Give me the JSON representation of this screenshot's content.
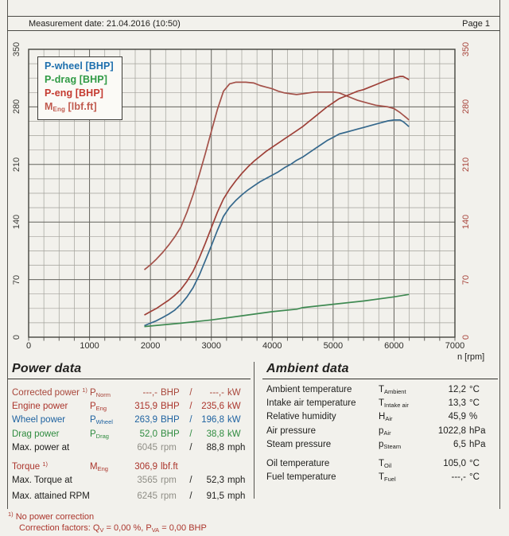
{
  "header": {
    "measurement_date": "Measurement date: 21.04.2016 (10:50)",
    "page_label": "Page 1"
  },
  "colors": {
    "p_wheel": "#35688c",
    "p_drag": "#3f8a52",
    "p_eng": "#9e4038",
    "m_eng": "#a4524a",
    "right_axis": "#a8453c",
    "legend_wheel": "#1d6fad",
    "legend_drag": "#2f9a44",
    "legend_eng": "#c43a30",
    "legend_meng": "#c05a4e"
  },
  "chart_data": {
    "type": "line",
    "x_axis": {
      "label": "n [rpm]",
      "min": 0,
      "max": 7000,
      "major_step": 1000,
      "minor_step": 250,
      "ticks": [
        0,
        1000,
        2000,
        3000,
        4000,
        5000,
        6000,
        7000
      ]
    },
    "y_axis_left": {
      "min": 0,
      "max": 350,
      "major_step": 70,
      "minor_step": 17.5,
      "ticks": [
        0,
        70,
        140,
        210,
        280,
        350
      ]
    },
    "y_axis_right": {
      "min": 0,
      "max": 350,
      "major_step": 70,
      "minor_step": 17.5,
      "ticks": [
        0,
        70,
        140,
        210,
        280,
        350
      ]
    },
    "grid": true,
    "legend_position": "top-left",
    "legend": [
      {
        "label": "P-wheel [BHP]",
        "color": "#1d6fad"
      },
      {
        "label": "P-drag [BHP]",
        "color": "#2f9a44"
      },
      {
        "label": "P-eng [BHP]",
        "color": "#c43a30"
      },
      {
        "base": "M",
        "sub": "Eng",
        "suffix": " [lbf.ft]",
        "color": "#c05a4e"
      }
    ],
    "series": [
      {
        "name": "M-eng torque [lbf.ft]",
        "color": "#a4524a",
        "points": [
          [
            1900,
            82
          ],
          [
            2000,
            88
          ],
          [
            2100,
            95
          ],
          [
            2200,
            103
          ],
          [
            2300,
            112
          ],
          [
            2400,
            122
          ],
          [
            2500,
            134
          ],
          [
            2600,
            152
          ],
          [
            2700,
            173
          ],
          [
            2800,
            197
          ],
          [
            2900,
            223
          ],
          [
            3000,
            250
          ],
          [
            3100,
            277
          ],
          [
            3200,
            299
          ],
          [
            3300,
            308
          ],
          [
            3400,
            310
          ],
          [
            3500,
            310
          ],
          [
            3565,
            310
          ],
          [
            3700,
            309
          ],
          [
            3800,
            306
          ],
          [
            3900,
            304
          ],
          [
            4000,
            302
          ],
          [
            4100,
            299
          ],
          [
            4200,
            297
          ],
          [
            4300,
            296
          ],
          [
            4400,
            295
          ],
          [
            4500,
            296
          ],
          [
            4600,
            297
          ],
          [
            4700,
            298
          ],
          [
            4800,
            298
          ],
          [
            4900,
            298
          ],
          [
            5000,
            298
          ],
          [
            5100,
            297
          ],
          [
            5200,
            294
          ],
          [
            5300,
            291
          ],
          [
            5400,
            288
          ],
          [
            5500,
            286
          ],
          [
            5600,
            284
          ],
          [
            5700,
            282
          ],
          [
            5800,
            281
          ],
          [
            5900,
            280
          ],
          [
            6000,
            278
          ],
          [
            6100,
            273
          ],
          [
            6200,
            267
          ],
          [
            6245,
            264
          ]
        ]
      },
      {
        "name": "P-eng [BHP]",
        "color": "#9e4038",
        "points": [
          [
            1900,
            27
          ],
          [
            2000,
            31
          ],
          [
            2100,
            35
          ],
          [
            2200,
            40
          ],
          [
            2300,
            45
          ],
          [
            2400,
            51
          ],
          [
            2500,
            58
          ],
          [
            2600,
            68
          ],
          [
            2700,
            80
          ],
          [
            2800,
            96
          ],
          [
            2900,
            114
          ],
          [
            3000,
            133
          ],
          [
            3100,
            152
          ],
          [
            3200,
            168
          ],
          [
            3300,
            180
          ],
          [
            3400,
            190
          ],
          [
            3500,
            199
          ],
          [
            3600,
            207
          ],
          [
            3700,
            214
          ],
          [
            3800,
            220
          ],
          [
            3900,
            226
          ],
          [
            4000,
            231
          ],
          [
            4100,
            236
          ],
          [
            4200,
            241
          ],
          [
            4300,
            246
          ],
          [
            4400,
            251
          ],
          [
            4500,
            256
          ],
          [
            4600,
            262
          ],
          [
            4700,
            268
          ],
          [
            4800,
            274
          ],
          [
            4900,
            280
          ],
          [
            5000,
            285
          ],
          [
            5100,
            290
          ],
          [
            5200,
            293
          ],
          [
            5300,
            296
          ],
          [
            5400,
            299
          ],
          [
            5500,
            301
          ],
          [
            5600,
            304
          ],
          [
            5700,
            307
          ],
          [
            5800,
            310
          ],
          [
            5900,
            313
          ],
          [
            6000,
            315
          ],
          [
            6045,
            316
          ],
          [
            6100,
            317
          ],
          [
            6150,
            317
          ],
          [
            6200,
            315
          ],
          [
            6245,
            313
          ]
        ]
      },
      {
        "name": "P-wheel [BHP]",
        "color": "#35688c",
        "points": [
          [
            1900,
            14
          ],
          [
            2000,
            17
          ],
          [
            2100,
            20
          ],
          [
            2200,
            24
          ],
          [
            2300,
            28
          ],
          [
            2400,
            33
          ],
          [
            2500,
            40
          ],
          [
            2600,
            49
          ],
          [
            2700,
            60
          ],
          [
            2800,
            75
          ],
          [
            2900,
            93
          ],
          [
            3000,
            111
          ],
          [
            3100,
            130
          ],
          [
            3200,
            147
          ],
          [
            3300,
            158
          ],
          [
            3400,
            166
          ],
          [
            3500,
            173
          ],
          [
            3600,
            179
          ],
          [
            3700,
            184
          ],
          [
            3800,
            189
          ],
          [
            3900,
            193
          ],
          [
            4000,
            197
          ],
          [
            4100,
            201
          ],
          [
            4200,
            206
          ],
          [
            4300,
            210
          ],
          [
            4400,
            215
          ],
          [
            4500,
            219
          ],
          [
            4600,
            224
          ],
          [
            4700,
            229
          ],
          [
            4800,
            234
          ],
          [
            4900,
            239
          ],
          [
            5000,
            243
          ],
          [
            5100,
            247
          ],
          [
            5200,
            249
          ],
          [
            5300,
            251
          ],
          [
            5400,
            253
          ],
          [
            5500,
            255
          ],
          [
            5600,
            257
          ],
          [
            5700,
            259
          ],
          [
            5800,
            261
          ],
          [
            5900,
            263
          ],
          [
            6000,
            264
          ],
          [
            6045,
            264
          ],
          [
            6100,
            264
          ],
          [
            6150,
            262
          ],
          [
            6200,
            259
          ],
          [
            6245,
            256
          ]
        ]
      },
      {
        "name": "P-drag [BHP]",
        "color": "#3f8a52",
        "points": [
          [
            1900,
            13
          ],
          [
            2500,
            17
          ],
          [
            3000,
            21
          ],
          [
            3500,
            26
          ],
          [
            4000,
            31
          ],
          [
            4400,
            34
          ],
          [
            4500,
            36
          ],
          [
            5000,
            40
          ],
          [
            5500,
            44
          ],
          [
            6000,
            49
          ],
          [
            6245,
            52
          ]
        ]
      }
    ]
  },
  "power": {
    "title": "Power data",
    "rows": [
      {
        "label": "Corrected power",
        "sup": "1)",
        "sym": "P",
        "sym_sub": "Norm",
        "v1": "---,-",
        "u1": "BHP",
        "slash": "/",
        "v2": "---,-",
        "u2": "kW"
      },
      {
        "label": "Engine power",
        "sym": "P",
        "sym_sub": "Eng",
        "v1": "315,9",
        "u1": "BHP",
        "slash": "/",
        "v2": "235,6",
        "u2": "kW"
      },
      {
        "label": "Wheel power",
        "sym": "P",
        "sym_sub": "Wheel",
        "v1": "263,9",
        "u1": "BHP",
        "slash": "/",
        "v2": "196,8",
        "u2": "kW"
      },
      {
        "label": "Drag power",
        "sym": "P",
        "sym_sub": "Drag",
        "v1": "52,0",
        "u1": "BHP",
        "slash": "/",
        "v2": "38,8",
        "u2": "kW"
      },
      {
        "label": "Max. power at",
        "v1": "6045",
        "u1": "rpm",
        "slash": "/",
        "v2": "88,8",
        "u2": "mph"
      },
      {
        "label": "Torque",
        "sup": "1)",
        "sym": "M",
        "sym_sub": "Eng",
        "v1": "306,9",
        "u1": "lbf.ft"
      },
      {
        "label": "Max. Torque at",
        "v1": "3565",
        "u1": "rpm",
        "slash": "/",
        "v2": "52,3",
        "u2": "mph"
      },
      {
        "label": "Max. attained RPM",
        "v1": "6245",
        "u1": "rpm",
        "slash": "/",
        "v2": "91,5",
        "u2": "mph"
      }
    ],
    "footnote1": {
      "sup": "1)",
      "text": " No power correction"
    },
    "footnote2": {
      "p1": "Correction factors: Q",
      "s1": "V",
      "p2": " =  0,00 %, P",
      "s2": "VA",
      "p3": " =  0,00 BHP"
    }
  },
  "ambient": {
    "title": "Ambient data",
    "rows": [
      {
        "label": "Ambient temperature",
        "sym": "T",
        "sym_sub": "Ambient",
        "val": "12,2",
        "unit": "°C"
      },
      {
        "label": "Intake air temperature",
        "sym": "T",
        "sym_sub": "Intake air",
        "val": "13,3",
        "unit": "°C"
      },
      {
        "label": "Relative humidity",
        "sym": "H",
        "sym_sub": "Air",
        "val": "45,9",
        "unit": "%"
      },
      {
        "label": "Air pressure",
        "sym": "p",
        "sym_sub": "Air",
        "val": "1022,8",
        "unit": "hPa"
      },
      {
        "label": "Steam pressure",
        "sym": "p",
        "sym_sub": "Steam",
        "val": "6,5",
        "unit": "hPa"
      },
      {
        "label": "Oil temperature",
        "sym": "T",
        "sym_sub": "Oil",
        "val": "105,0",
        "unit": "°C"
      },
      {
        "label": "Fuel temperature",
        "sym": "T",
        "sym_sub": "Fuel",
        "val": "---,-",
        "unit": "°C"
      }
    ]
  }
}
